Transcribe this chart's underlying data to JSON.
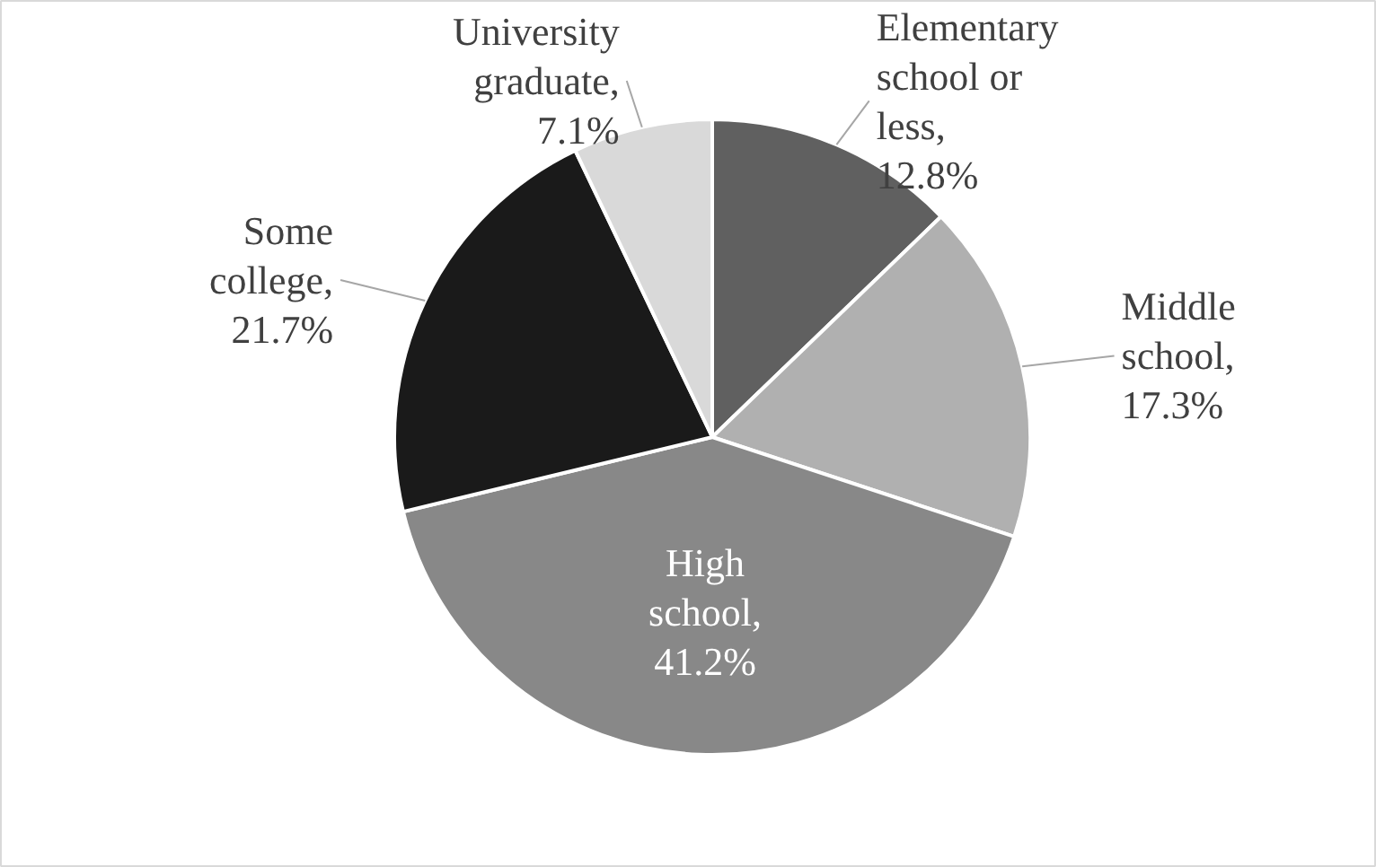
{
  "chart_data": {
    "type": "pie",
    "categories": [
      "Elementary school or less",
      "Middle school",
      "High school",
      "Some college",
      "University graduate"
    ],
    "values": [
      12.8,
      17.3,
      41.2,
      21.7,
      7.1
    ],
    "value_labels": [
      ", 12.8%",
      ", 17.3%",
      ", 41.2%",
      ", 21.7%",
      ", 7.1%"
    ],
    "colors": [
      "#606060",
      "#b0b0b0",
      "#888888",
      "#1a1a1a",
      "#d9d9d9"
    ]
  }
}
